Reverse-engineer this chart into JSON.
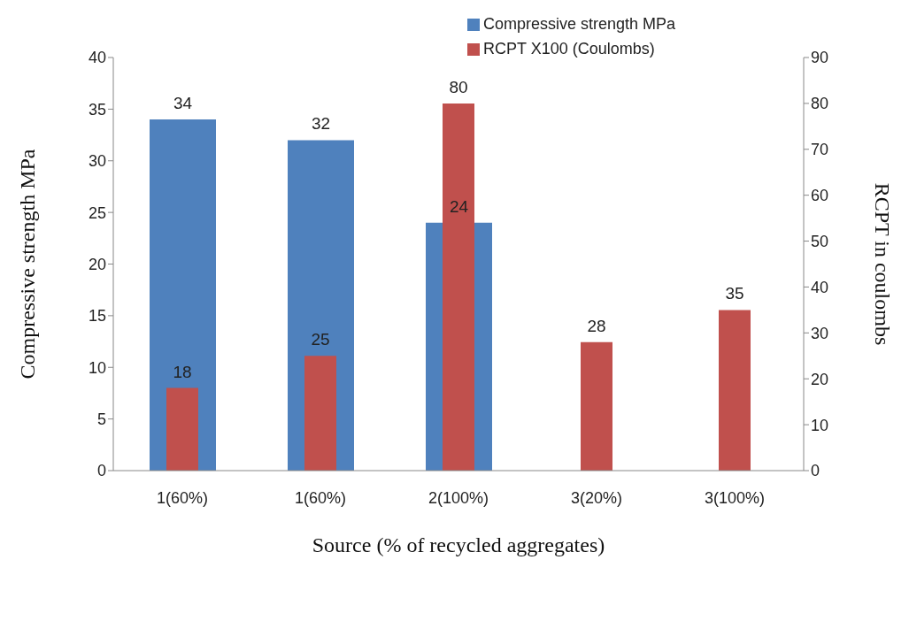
{
  "chart_data": {
    "type": "bar",
    "xlabel": "Source (% of recycled aggregates)",
    "ylabel": "Compressive strength MPa",
    "y2label": "RCPT in coulombs",
    "categories": [
      "1(60%)",
      "1(60%)",
      "2(100%)",
      "3(20%)",
      "3(100%)"
    ],
    "series": [
      {
        "name": "Compressive strength MPa",
        "color": "#4f81bd",
        "values": [
          34,
          32,
          24,
          null,
          null
        ]
      },
      {
        "name": "RCPT X100 (Coulombs)",
        "color": "#c0504d",
        "values": [
          18,
          25,
          80,
          28,
          35
        ],
        "axis": "y2"
      }
    ],
    "ylim": [
      0,
      40
    ],
    "yticks": [
      0,
      5,
      10,
      15,
      20,
      25,
      30,
      35,
      40
    ],
    "y2lim": [
      0,
      90
    ],
    "y2ticks": [
      0,
      10,
      20,
      30,
      40,
      50,
      60,
      70,
      80,
      90
    ],
    "data_labels": true,
    "legend": "top right",
    "grid": false
  }
}
